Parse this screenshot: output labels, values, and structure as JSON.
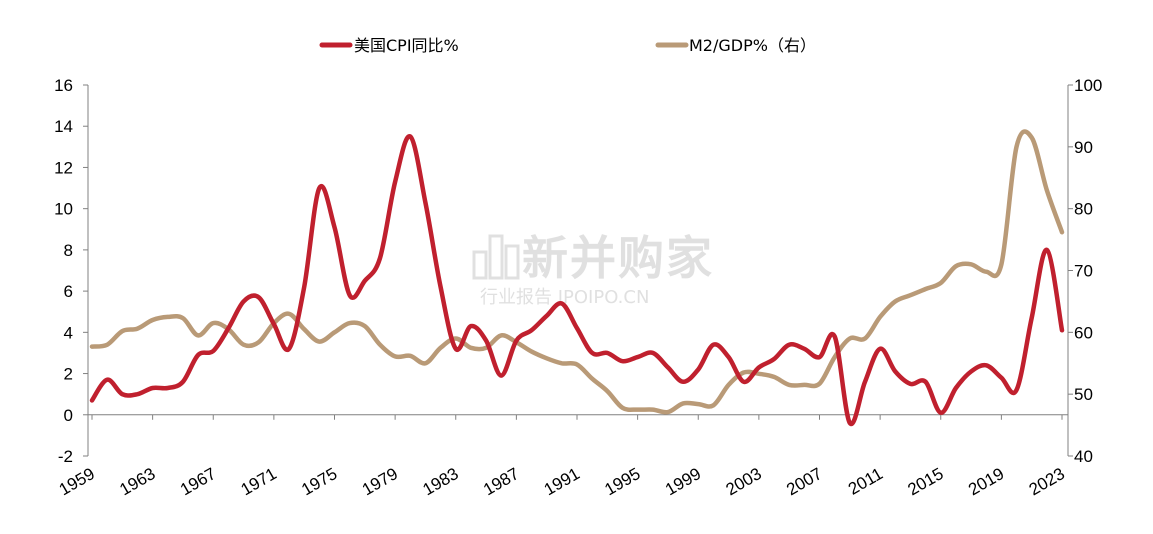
{
  "chart_data": {
    "type": "line",
    "categories": [
      "1959",
      "1960",
      "1961",
      "1962",
      "1963",
      "1964",
      "1965",
      "1966",
      "1967",
      "1968",
      "1969",
      "1970",
      "1971",
      "1972",
      "1973",
      "1974",
      "1975",
      "1976",
      "1977",
      "1978",
      "1979",
      "1980",
      "1981",
      "1982",
      "1983",
      "1984",
      "1985",
      "1986",
      "1987",
      "1988",
      "1989",
      "1990",
      "1991",
      "1992",
      "1993",
      "1994",
      "1995",
      "1996",
      "1997",
      "1998",
      "1999",
      "2000",
      "2001",
      "2002",
      "2003",
      "2004",
      "2005",
      "2006",
      "2007",
      "2008",
      "2009",
      "2010",
      "2011",
      "2012",
      "2013",
      "2014",
      "2015",
      "2016",
      "2017",
      "2018",
      "2019",
      "2020",
      "2021",
      "2022",
      "2023"
    ],
    "x_tick_labels": [
      "1959",
      "1963",
      "1967",
      "1971",
      "1975",
      "1979",
      "1983",
      "1987",
      "1991",
      "1995",
      "1999",
      "2003",
      "2007",
      "2011",
      "2015",
      "2019",
      "2023"
    ],
    "series": [
      {
        "name": "美国CPI同比%",
        "axis": "left",
        "color": "#c0202e",
        "values": [
          0.7,
          1.7,
          1.0,
          1.0,
          1.3,
          1.3,
          1.6,
          2.9,
          3.1,
          4.2,
          5.5,
          5.7,
          4.4,
          3.2,
          6.2,
          11.0,
          9.1,
          5.8,
          6.5,
          7.6,
          11.3,
          13.5,
          10.3,
          6.2,
          3.2,
          4.3,
          3.6,
          1.9,
          3.6,
          4.1,
          4.8,
          5.4,
          4.2,
          3.0,
          3.0,
          2.6,
          2.8,
          3.0,
          2.3,
          1.6,
          2.2,
          3.4,
          2.8,
          1.6,
          2.3,
          2.7,
          3.4,
          3.2,
          2.8,
          3.8,
          -0.4,
          1.6,
          3.2,
          2.1,
          1.5,
          1.6,
          0.1,
          1.3,
          2.1,
          2.4,
          1.8,
          1.2,
          4.7,
          8.0,
          4.1
        ]
      },
      {
        "name": "M2/GDP%（右）",
        "axis": "right",
        "color": "#b99a77",
        "values": [
          57.7,
          58.0,
          60.2,
          60.6,
          62.0,
          62.5,
          62.3,
          59.5,
          61.5,
          60.5,
          58.0,
          58.4,
          61.5,
          63.0,
          60.5,
          58.5,
          60.0,
          61.5,
          61.0,
          58.0,
          56.1,
          56.2,
          55.0,
          57.5,
          59.0,
          57.5,
          57.5,
          59.5,
          58.4,
          56.9,
          55.8,
          55.0,
          54.8,
          52.5,
          50.5,
          47.8,
          47.5,
          47.5,
          47.1,
          48.5,
          48.4,
          48.2,
          51.5,
          53.5,
          53.3,
          52.8,
          51.5,
          51.5,
          51.7,
          56.0,
          59.0,
          59.0,
          62.5,
          65.0,
          66.0,
          67.0,
          68.0,
          70.7,
          71.0,
          69.8,
          71.0,
          90.0,
          91.5,
          83.0,
          76.2
        ]
      }
    ],
    "y_left": {
      "min": -2,
      "max": 16,
      "step": 2,
      "ticks": [
        "-2",
        "0",
        "2",
        "4",
        "6",
        "8",
        "10",
        "12",
        "14",
        "16"
      ]
    },
    "y_right": {
      "min": 40,
      "max": 100,
      "step": 10,
      "ticks": [
        "40",
        "50",
        "60",
        "70",
        "80",
        "90",
        "100"
      ]
    },
    "legend_position": "top-center",
    "grid": false
  },
  "watermark": {
    "main": "新并购家",
    "sub": "行业报告 IPOIPO.CN"
  }
}
